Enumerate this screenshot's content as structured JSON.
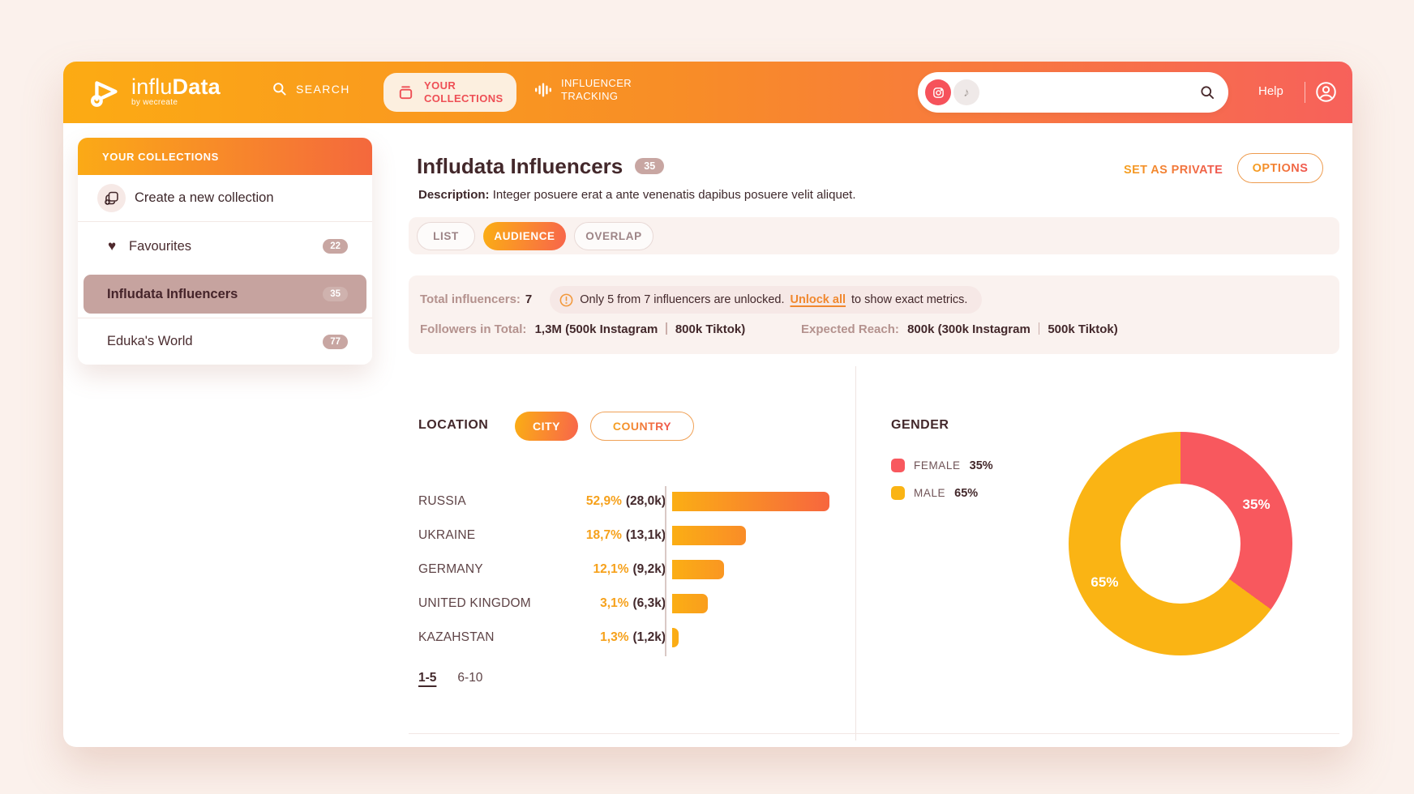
{
  "nav": {
    "logo_light": "influ",
    "logo_bold": "Data",
    "logo_sub": "by wecreate",
    "search": "SEARCH",
    "collections_line1": "YOUR",
    "collections_line2": "COLLECTIONS",
    "tracking_line1": "INFLUENCER",
    "tracking_line2": "TRACKING",
    "help": "Help"
  },
  "sidebar": {
    "header": "YOUR COLLECTIONS",
    "create": "Create a new collection",
    "items": [
      {
        "label": "Favourites",
        "count": "22"
      },
      {
        "label": "Infludata Influencers",
        "count": "35"
      },
      {
        "label": "Eduka's World",
        "count": "77"
      }
    ]
  },
  "page": {
    "title": "Infludata Influencers",
    "badge": "35",
    "desc_label": "Description:",
    "desc_text": "Integer posuere erat a ante venenatis dapibus posuere velit aliquet.",
    "set_private": "SET AS PRIVATE",
    "options": "OPTIONS"
  },
  "tabs": [
    {
      "label": "LIST"
    },
    {
      "label": "AUDIENCE"
    },
    {
      "label": "OVERLAP"
    }
  ],
  "stats": {
    "total_label": "Total influencers:",
    "total_value": "7",
    "notice_main": "Only 5 from 7 influencers are unlocked.",
    "notice_link": "Unlock all",
    "notice_tail": "to show exact metrics.",
    "followers_label": "Followers in Total:",
    "followers_left": "1,3M (500k Instagram",
    "followers_right": "800k Tiktok)",
    "reach_label": "Expected Reach:",
    "reach_left": "800k (300k Instagram",
    "reach_right": "500k Tiktok)"
  },
  "location": {
    "heading": "LOCATION",
    "city": "CITY",
    "country": "COUNTRY",
    "rows": [
      {
        "label": "RUSSIA",
        "percent": "52,9%",
        "count": "(28,0k)",
        "value_k": 28.0
      },
      {
        "label": "UKRAINE",
        "percent": "18,7%",
        "count": "(13,1k)",
        "value_k": 13.1
      },
      {
        "label": "GERMANY",
        "percent": "12,1%",
        "count": "(9,2k)",
        "value_k": 9.2
      },
      {
        "label": "UNITED KINGDOM",
        "percent": "3,1%",
        "count": "(6,3k)",
        "value_k": 6.3
      },
      {
        "label": "KAZAHSTAN",
        "percent": "1,3%",
        "count": "(1,2k)",
        "value_k": 1.2
      }
    ],
    "page_current": "1-5",
    "page_next": "6-10"
  },
  "gender": {
    "heading": "GENDER",
    "values": [
      35,
      65
    ],
    "legend": [
      {
        "label": "FEMALE",
        "value": "35%",
        "color": "#F8585E"
      },
      {
        "label": "MALE",
        "value": "65%",
        "color": "#FAB414"
      }
    ]
  },
  "chart_data": [
    {
      "type": "bar",
      "title": "LOCATION (CITY)",
      "categories": [
        "RUSSIA",
        "UKRAINE",
        "GERMANY",
        "UNITED KINGDOM",
        "KAZAHSTAN"
      ],
      "series": [
        {
          "name": "audience_share_percent",
          "values": [
            52.9,
            18.7,
            12.1,
            3.1,
            1.3
          ]
        },
        {
          "name": "audience_count_thousands",
          "values": [
            28.0,
            13.1,
            9.2,
            6.3,
            1.2
          ]
        }
      ],
      "orientation": "horizontal",
      "value_labels": [
        "52,9% (28,0k)",
        "18,7% (13,1k)",
        "12,1% (9,2k)",
        "3,1% (6,3k)",
        "1,3% (1,2k)"
      ]
    },
    {
      "type": "pie",
      "title": "GENDER",
      "labels": [
        "FEMALE",
        "MALE"
      ],
      "values": [
        35,
        65
      ],
      "colors": [
        "#F8585E",
        "#FAB414"
      ],
      "donut": true,
      "legend_position": "left"
    }
  ]
}
